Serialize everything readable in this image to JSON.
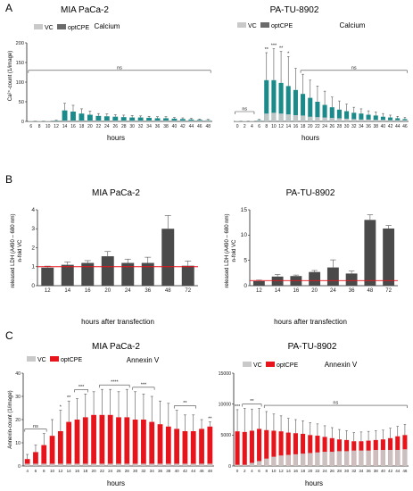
{
  "panel_labels": [
    "A",
    "B",
    "C"
  ],
  "colors": {
    "vc": "#c9c9c9",
    "optcpe_legend_a": "#6b6b6b",
    "teal": "#1a8a8a",
    "gray_dark": "#4a4a4a",
    "red": "#e8141c",
    "ref_line": "#e8141c"
  },
  "chart_data": [
    {
      "id": "a1",
      "type": "bar",
      "title": "MIA PaCa-2",
      "subtitle": "Calcium",
      "ylabel": "Ca²⁺-count (1/image)",
      "xlabel": "hours",
      "legend": [
        "VC",
        "optCPE"
      ],
      "legend_position": "top-left",
      "ylim": [
        0,
        200
      ],
      "yticks": [
        0,
        50,
        100,
        150,
        200
      ],
      "categories": [
        "6",
        "8",
        "10",
        "12",
        "14",
        "16",
        "18",
        "20",
        "22",
        "24",
        "26",
        "28",
        "30",
        "32",
        "34",
        "36",
        "38",
        "40",
        "42",
        "44",
        "46",
        "48"
      ],
      "series": [
        {
          "name": "VC",
          "values": [
            1,
            1,
            1,
            1,
            2,
            2,
            2,
            2,
            2,
            2,
            2,
            2,
            2,
            2,
            2,
            2,
            2,
            2,
            2,
            2,
            2,
            2
          ]
        },
        {
          "name": "optCPE",
          "values": [
            1,
            1,
            1,
            2,
            28,
            25,
            20,
            17,
            14,
            13,
            12,
            11,
            10,
            10,
            9,
            8,
            8,
            7,
            6,
            5,
            4,
            3
          ],
          "errors": [
            0,
            0,
            0,
            1,
            18,
            16,
            12,
            9,
            6,
            6,
            5,
            5,
            5,
            4,
            4,
            4,
            4,
            3,
            3,
            3,
            2,
            2
          ]
        }
      ],
      "annotations": [
        {
          "text": "ns",
          "from": "6",
          "to": "48"
        }
      ]
    },
    {
      "id": "a2",
      "type": "bar",
      "title": "PA-TU-8902",
      "subtitle": "Calcium",
      "xlabel": "hours",
      "legend": [
        "VC",
        "optCPE"
      ],
      "legend_position": "top-left",
      "ylim": [
        0,
        200
      ],
      "categories": [
        "0",
        "2",
        "4",
        "6",
        "8",
        "10",
        "12",
        "14",
        "16",
        "18",
        "20",
        "22",
        "24",
        "26",
        "28",
        "30",
        "32",
        "34",
        "36",
        "38",
        "40",
        "42",
        "44",
        "46"
      ],
      "series": [
        {
          "name": "VC",
          "values": [
            1,
            1,
            1,
            2,
            20,
            22,
            20,
            18,
            16,
            15,
            12,
            11,
            10,
            9,
            8,
            7,
            6,
            5,
            5,
            4,
            4,
            3,
            3,
            3
          ]
        },
        {
          "name": "optCPE",
          "values": [
            1,
            1,
            1,
            3,
            105,
            105,
            98,
            90,
            80,
            70,
            60,
            50,
            42,
            36,
            30,
            26,
            22,
            20,
            17,
            15,
            12,
            10,
            8,
            6
          ],
          "errors": [
            0,
            0,
            0,
            2,
            70,
            80,
            80,
            75,
            55,
            50,
            45,
            40,
            35,
            26,
            22,
            18,
            14,
            12,
            10,
            9,
            8,
            6,
            5,
            4
          ]
        }
      ],
      "annotations": [
        {
          "text": "ns",
          "from": "0",
          "to": "4"
        },
        {
          "text": "ns",
          "from": "18",
          "to": "46"
        },
        {
          "text": "**",
          "at": "8"
        },
        {
          "text": "***",
          "at": "10"
        },
        {
          "text": "**",
          "at": "12"
        },
        {
          "text": "*",
          "at": "14"
        }
      ]
    },
    {
      "id": "b1",
      "type": "bar",
      "title": "MIA PaCa-2",
      "ylabel": "released LDH (A490 – 680 nm)",
      "ylabel2": "n-fold VC",
      "xlabel": "hours after transfection",
      "ylim": [
        0,
        4
      ],
      "yticks": [
        0,
        1,
        2,
        3,
        4
      ],
      "reference_line": 1,
      "categories": [
        "12",
        "14",
        "16",
        "20",
        "24",
        "36",
        "48",
        "72"
      ],
      "values": [
        0.95,
        1.1,
        1.2,
        1.55,
        1.2,
        1.2,
        3.0,
        1.05
      ],
      "errors": [
        0.08,
        0.15,
        0.12,
        0.25,
        0.2,
        0.3,
        0.7,
        0.25
      ]
    },
    {
      "id": "b2",
      "type": "bar",
      "title": "PA-TU-8902",
      "ylabel": "released LDH (A490 – 680 nm)",
      "ylabel2": "n-fold VC",
      "xlabel": "hours after transfection",
      "ylim": [
        0,
        15
      ],
      "yticks": [
        0,
        5,
        10,
        15
      ],
      "reference_line": 1,
      "categories": [
        "12",
        "14",
        "16",
        "20",
        "24",
        "36",
        "48",
        "72"
      ],
      "values": [
        0.9,
        1.8,
        1.9,
        2.7,
        3.6,
        2.4,
        13.0,
        11.3
      ],
      "errors": [
        0.2,
        0.4,
        0.2,
        0.3,
        1.5,
        0.5,
        1.0,
        0.6
      ]
    },
    {
      "id": "c1",
      "type": "bar",
      "title": "MIA PaCa-2",
      "subtitle": "Annexin V",
      "ylabel": "Annexin-count (1/image)",
      "xlabel": "hours",
      "legend": [
        "VC",
        "optCPE"
      ],
      "legend_position": "top-left",
      "ylim": [
        0,
        40
      ],
      "yticks": [
        0,
        10,
        20,
        30,
        40
      ],
      "categories": [
        "4",
        "6",
        "8",
        "10",
        "12",
        "14",
        "16",
        "18",
        "20",
        "22",
        "24",
        "26",
        "28",
        "30",
        "32",
        "34",
        "36",
        "38",
        "40",
        "42",
        "44",
        "46",
        "48"
      ],
      "series": [
        {
          "name": "VC",
          "values": [
            1,
            1,
            1,
            1,
            1,
            1,
            1,
            1,
            1,
            1,
            1,
            1,
            1,
            1,
            1,
            1,
            1,
            1,
            1,
            1,
            1,
            1,
            1
          ]
        },
        {
          "name": "optCPE",
          "values": [
            3,
            6,
            9,
            13,
            15,
            19,
            20,
            21,
            22,
            22,
            22,
            21,
            21,
            20,
            20,
            19,
            18,
            17,
            16,
            15,
            15,
            16,
            17
          ],
          "errors": [
            2,
            3,
            5,
            7,
            9,
            9,
            9,
            10,
            10,
            11,
            11,
            11,
            12,
            12,
            11,
            11,
            10,
            10,
            8,
            7,
            7,
            4,
            2
          ]
        }
      ],
      "annotations": [
        {
          "text": "ns",
          "from": "4",
          "to": "8"
        },
        {
          "text": "*",
          "at": "12"
        },
        {
          "text": "**",
          "at": "14"
        },
        {
          "text": "***",
          "from": "16",
          "to": "18"
        },
        {
          "text": "****",
          "from": "22",
          "to": "28"
        },
        {
          "text": "***",
          "from": "30",
          "to": "34"
        },
        {
          "text": "**",
          "from": "40",
          "to": "44"
        },
        {
          "text": "**",
          "at": "48"
        }
      ]
    },
    {
      "id": "c2",
      "type": "bar",
      "title": "PA-TU-8902",
      "subtitle": "Annexin V",
      "xlabel": "hours",
      "legend": [
        "VC",
        "optCPE"
      ],
      "legend_position": "top-left",
      "ylim": [
        0,
        15000
      ],
      "yticks": [
        0,
        5000,
        10000,
        15000
      ],
      "categories": [
        "0",
        "2",
        "4",
        "6",
        "8",
        "10",
        "12",
        "14",
        "16",
        "18",
        "20",
        "22",
        "24",
        "26",
        "28",
        "30",
        "32",
        "34",
        "36",
        "38",
        "40",
        "42",
        "44",
        "46"
      ],
      "series": [
        {
          "name": "VC",
          "values": [
            200,
            200,
            500,
            800,
            1200,
            1500,
            1700,
            1800,
            1900,
            2000,
            2100,
            2200,
            2300,
            2300,
            2400,
            2400,
            2500,
            2500,
            2500,
            2600,
            2600,
            2600,
            2600,
            2700
          ]
        },
        {
          "name": "optCPE",
          "values": [
            5600,
            5500,
            5700,
            6000,
            5800,
            5700,
            5600,
            5400,
            5300,
            5200,
            5000,
            4900,
            4700,
            4500,
            4300,
            4200,
            4000,
            4000,
            4100,
            4200,
            4300,
            4500,
            4800,
            5000
          ],
          "errors": [
            3500,
            3800,
            3500,
            3300,
            3000,
            2700,
            2500,
            2300,
            2200,
            2100,
            2000,
            1900,
            1800,
            1700,
            1600,
            1500,
            1400,
            1500,
            1500,
            1500,
            1500,
            1600,
            1600,
            1700
          ]
        }
      ],
      "annotations": [
        {
          "text": "***",
          "at": "0"
        },
        {
          "text": "**",
          "from": "2",
          "to": "6"
        },
        {
          "text": "ns",
          "from": "8",
          "to": "46"
        }
      ]
    }
  ]
}
